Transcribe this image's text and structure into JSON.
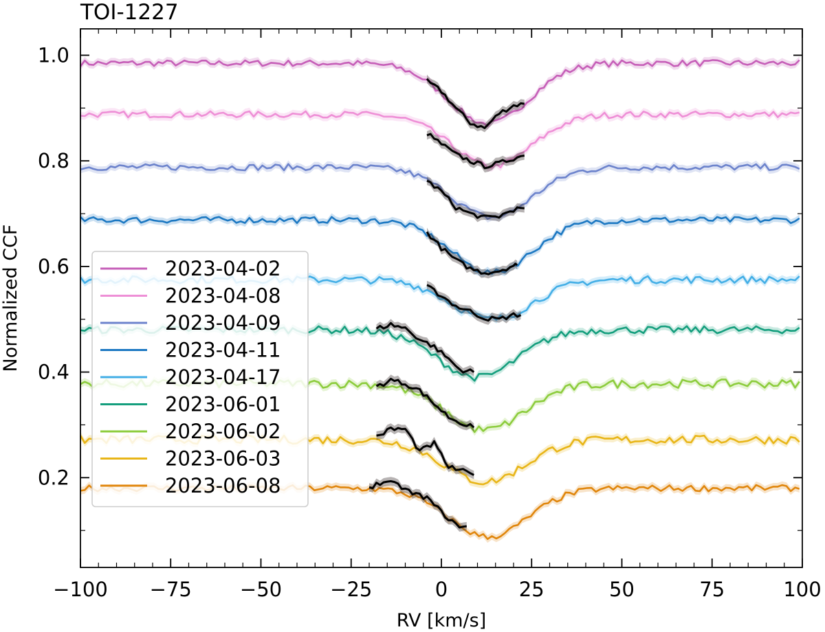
{
  "chart_data": {
    "type": "line",
    "title": "TOI-1227",
    "xlabel": "RV [km/s]",
    "ylabel": "Normalized CCF",
    "xlim": [
      -100,
      100
    ],
    "ylim": [
      0.03,
      1.05
    ],
    "xticks": [
      -100,
      -75,
      -50,
      -25,
      0,
      25,
      50,
      75,
      100
    ],
    "xtick_labels": [
      "−100",
      "−75",
      "−50",
      "−25",
      "0",
      "25",
      "50",
      "75",
      "100"
    ],
    "yticks": [
      0.2,
      0.4,
      0.6,
      0.8,
      1.0
    ],
    "ytick_labels": [
      "0.2",
      "0.4",
      "0.6",
      "0.8",
      "1.0"
    ],
    "grid": false,
    "legend_position": "lower-left",
    "in_transit_color": "#000000",
    "series": [
      {
        "name": "2023-04-02",
        "color": "#c65fb8",
        "baseline": 0.985,
        "depth": 0.115,
        "center": 13,
        "transit": [
          -4,
          23
        ],
        "jitter": 0.006,
        "transit_points": [
          [
            -4,
            0.951
          ],
          [
            0,
            0.932
          ],
          [
            4,
            0.9
          ],
          [
            8,
            0.872
          ],
          [
            12,
            0.862
          ],
          [
            16,
            0.89
          ],
          [
            20,
            0.905
          ],
          [
            23,
            0.908
          ]
        ]
      },
      {
        "name": "2023-04-08",
        "color": "#ee8fd6",
        "baseline": 0.888,
        "depth": 0.098,
        "center": 14,
        "transit": [
          -4,
          23
        ],
        "jitter": 0.006,
        "transit_points": [
          [
            -4,
            0.852
          ],
          [
            0,
            0.832
          ],
          [
            4,
            0.812
          ],
          [
            8,
            0.8
          ],
          [
            12,
            0.79
          ],
          [
            16,
            0.795
          ],
          [
            20,
            0.805
          ],
          [
            23,
            0.81
          ]
        ]
      },
      {
        "name": "2023-04-09",
        "color": "#6c83cc",
        "baseline": 0.788,
        "depth": 0.095,
        "center": 14,
        "transit": [
          -4,
          23
        ],
        "jitter": 0.006,
        "transit_points": [
          [
            -4,
            0.762
          ],
          [
            0,
            0.742
          ],
          [
            4,
            0.712
          ],
          [
            8,
            0.7
          ],
          [
            12,
            0.692
          ],
          [
            16,
            0.695
          ],
          [
            20,
            0.708
          ],
          [
            23,
            0.71
          ]
        ]
      },
      {
        "name": "2023-04-11",
        "color": "#1c78c2",
        "baseline": 0.688,
        "depth": 0.1,
        "center": 14,
        "transit": [
          -4,
          21
        ],
        "jitter": 0.006,
        "transit_points": [
          [
            -4,
            0.665
          ],
          [
            0,
            0.635
          ],
          [
            4,
            0.612
          ],
          [
            8,
            0.596
          ],
          [
            12,
            0.588
          ],
          [
            16,
            0.592
          ],
          [
            20,
            0.602
          ],
          [
            21,
            0.603
          ]
        ]
      },
      {
        "name": "2023-04-17",
        "color": "#42aee6",
        "baseline": 0.575,
        "depth": 0.075,
        "center": 14,
        "transit": [
          -4,
          22
        ],
        "jitter": 0.007,
        "transit_points": [
          [
            -4,
            0.562
          ],
          [
            0,
            0.545
          ],
          [
            4,
            0.525
          ],
          [
            8,
            0.515
          ],
          [
            12,
            0.502
          ],
          [
            16,
            0.5
          ],
          [
            20,
            0.508
          ],
          [
            22,
            0.508
          ]
        ]
      },
      {
        "name": "2023-06-01",
        "color": "#149e7d",
        "baseline": 0.48,
        "depth": 0.09,
        "center": 10,
        "transit": [
          -18,
          9
        ],
        "jitter": 0.007,
        "transit_points": [
          [
            -18,
            0.482
          ],
          [
            -14,
            0.49
          ],
          [
            -10,
            0.483
          ],
          [
            -6,
            0.462
          ],
          [
            -2,
            0.448
          ],
          [
            2,
            0.425
          ],
          [
            5,
            0.405
          ],
          [
            9,
            0.4
          ]
        ]
      },
      {
        "name": "2023-06-02",
        "color": "#8ccc3c",
        "baseline": 0.378,
        "depth": 0.088,
        "center": 12,
        "transit": [
          -18,
          9
        ],
        "jitter": 0.008,
        "transit_points": [
          [
            -18,
            0.372
          ],
          [
            -14,
            0.385
          ],
          [
            -10,
            0.378
          ],
          [
            -6,
            0.365
          ],
          [
            -2,
            0.34
          ],
          [
            2,
            0.315
          ],
          [
            6,
            0.302
          ],
          [
            9,
            0.295
          ]
        ]
      },
      {
        "name": "2023-06-03",
        "color": "#e8b517",
        "baseline": 0.272,
        "depth": 0.08,
        "center": 12,
        "transit": [
          -18,
          9
        ],
        "jitter": 0.008,
        "transit_points": [
          [
            -18,
            0.278
          ],
          [
            -14,
            0.292
          ],
          [
            -10,
            0.292
          ],
          [
            -6,
            0.25
          ],
          [
            -2,
            0.265
          ],
          [
            2,
            0.22
          ],
          [
            6,
            0.212
          ],
          [
            9,
            0.205
          ]
        ]
      },
      {
        "name": "2023-06-08",
        "color": "#e0860c",
        "baseline": 0.18,
        "depth": 0.092,
        "center": 13,
        "transit": [
          -20,
          7
        ],
        "jitter": 0.006,
        "transit_points": [
          [
            -20,
            0.182
          ],
          [
            -16,
            0.192
          ],
          [
            -12,
            0.186
          ],
          [
            -8,
            0.17
          ],
          [
            -4,
            0.162
          ],
          [
            0,
            0.135
          ],
          [
            4,
            0.11
          ],
          [
            7,
            0.108
          ]
        ]
      }
    ]
  }
}
